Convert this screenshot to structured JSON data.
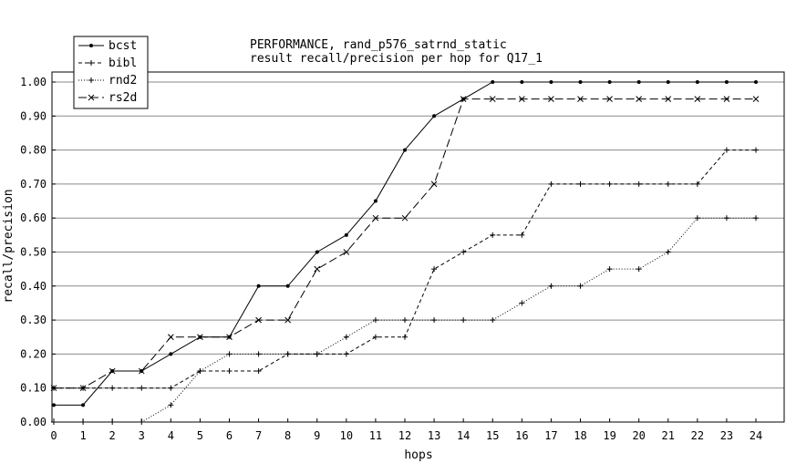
{
  "chart_data": {
    "type": "line",
    "title": "PERFORMANCE, rand_p576_satrnd_static",
    "subtitle": "result recall/precision per hop for Q17_1",
    "xlabel": "hops",
    "ylabel": "recall/precision",
    "x": [
      0,
      1,
      2,
      3,
      4,
      5,
      6,
      7,
      8,
      9,
      10,
      11,
      12,
      13,
      14,
      15,
      16,
      17,
      18,
      19,
      20,
      21,
      22,
      23,
      24
    ],
    "xlim": [
      0,
      24
    ],
    "ylim": [
      0,
      1.0
    ],
    "yticks": [
      "0.00",
      "0.10",
      "0.20",
      "0.30",
      "0.40",
      "0.50",
      "0.60",
      "0.70",
      "0.80",
      "0.90",
      "1.00"
    ],
    "xticks": [
      "0",
      "1",
      "2",
      "3",
      "4",
      "5",
      "6",
      "7",
      "8",
      "9",
      "10",
      "11",
      "12",
      "13",
      "14",
      "15",
      "16",
      "17",
      "18",
      "19",
      "20",
      "21",
      "22",
      "23",
      "24"
    ],
    "grid": "horizontal",
    "legend_position": "top-left",
    "series": [
      {
        "name": "bcst",
        "marker": "dot",
        "dash": "solid",
        "values": [
          0.05,
          0.05,
          0.15,
          0.15,
          0.2,
          0.25,
          0.25,
          0.4,
          0.4,
          0.5,
          0.55,
          0.65,
          0.8,
          0.9,
          0.95,
          1.0,
          1.0,
          1.0,
          1.0,
          1.0,
          1.0,
          1.0,
          1.0,
          1.0,
          1.0
        ]
      },
      {
        "name": "bibl",
        "marker": "plus",
        "dash": "dashed",
        "values": [
          0.1,
          0.1,
          0.1,
          0.1,
          0.1,
          0.15,
          0.15,
          0.15,
          0.2,
          0.2,
          0.2,
          0.25,
          0.25,
          0.45,
          0.5,
          0.55,
          0.55,
          0.7,
          0.7,
          0.7,
          0.7,
          0.7,
          0.7,
          0.8,
          0.8
        ]
      },
      {
        "name": "rnd2",
        "marker": "plus",
        "dash": "dotted",
        "values": [
          0.0,
          0.0,
          0.0,
          0.0,
          0.05,
          0.15,
          0.2,
          0.2,
          0.2,
          0.2,
          0.25,
          0.3,
          0.3,
          0.3,
          0.3,
          0.3,
          0.35,
          0.4,
          0.4,
          0.45,
          0.45,
          0.5,
          0.6,
          0.6,
          0.6
        ]
      },
      {
        "name": "rs2d",
        "marker": "x",
        "dash": "longdash",
        "values": [
          0.1,
          0.1,
          0.15,
          0.15,
          0.25,
          0.25,
          0.25,
          0.3,
          0.3,
          0.45,
          0.5,
          0.6,
          0.6,
          0.7,
          0.95,
          0.95,
          0.95,
          0.95,
          0.95,
          0.95,
          0.95,
          0.95,
          0.95,
          0.95,
          0.95
        ]
      }
    ]
  }
}
